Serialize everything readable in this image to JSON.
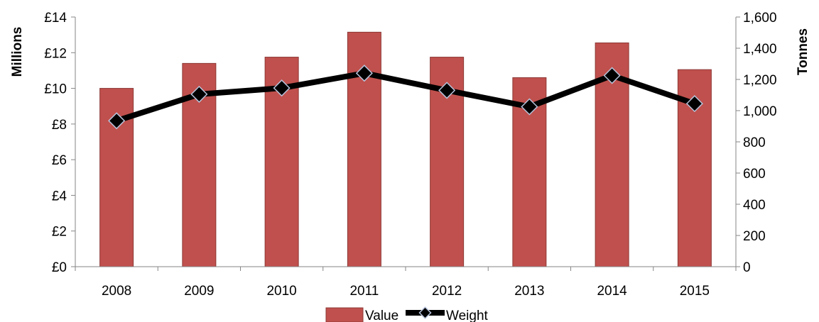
{
  "chart_data": {
    "type": "bar",
    "categories": [
      "2008",
      "2009",
      "2010",
      "2011",
      "2012",
      "2013",
      "2014",
      "2015"
    ],
    "series": [
      {
        "name": "Value",
        "type": "bar",
        "axis": "left",
        "values": [
          10.0,
          11.4,
          11.75,
          13.15,
          11.75,
          10.6,
          12.55,
          11.05
        ],
        "color": "#c0504d",
        "border": "#8c3836"
      },
      {
        "name": "Weight",
        "type": "line",
        "axis": "right",
        "values": [
          935,
          1105,
          1145,
          1240,
          1130,
          1025,
          1225,
          1045
        ],
        "color": "#000000",
        "marker": "diamond",
        "marker_edge": "#b8c4dc"
      }
    ],
    "y_left": {
      "label": "Millions",
      "ylim": [
        0,
        14
      ],
      "ticks": [
        {
          "value": 0,
          "label": "£0"
        },
        {
          "value": 2,
          "label": "£2"
        },
        {
          "value": 4,
          "label": "£4"
        },
        {
          "value": 6,
          "label": "£6"
        },
        {
          "value": 8,
          "label": "£8"
        },
        {
          "value": 10,
          "label": "£10"
        },
        {
          "value": 12,
          "label": "£12"
        },
        {
          "value": 14,
          "label": "£14"
        }
      ]
    },
    "y_right": {
      "label": "Tonnes",
      "ylim": [
        0,
        1600
      ],
      "ticks": [
        {
          "value": 0,
          "label": "0"
        },
        {
          "value": 200,
          "label": "200"
        },
        {
          "value": 400,
          "label": "400"
        },
        {
          "value": 600,
          "label": "600"
        },
        {
          "value": 800,
          "label": "800"
        },
        {
          "value": 1000,
          "label": "1,000"
        },
        {
          "value": 1200,
          "label": "1,200"
        },
        {
          "value": 1400,
          "label": "1,400"
        },
        {
          "value": 1600,
          "label": "1,600"
        }
      ]
    },
    "grid": false,
    "legend_position": "bottom"
  }
}
